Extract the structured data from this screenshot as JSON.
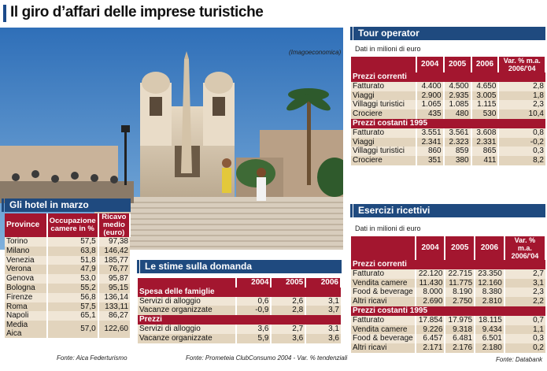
{
  "title": "Il giro d’affari delle imprese turistiche",
  "photo": {
    "credit": "(Imagoeconomica)"
  },
  "hotel": {
    "head": "Gli hotel in marzo",
    "columns": [
      "Province",
      "Occupazione camere in %",
      "Ricavo medio (euro)"
    ],
    "rows": [
      [
        "Torino",
        "57,5",
        "97,38"
      ],
      [
        "Milano",
        "63,8",
        "146,42"
      ],
      [
        "Venezia",
        "51,8",
        "185,77"
      ],
      [
        "Verona",
        "47,9",
        "76,77"
      ],
      [
        "Genova",
        "53,0",
        "95,87"
      ],
      [
        "Bologna",
        "55,2",
        "95,15"
      ],
      [
        "Firenze",
        "56,8",
        "136,14"
      ],
      [
        "Roma",
        "57,5",
        "133,11"
      ],
      [
        "Napoli",
        "65,1",
        "86,27"
      ],
      [
        "Media Aica",
        "57,0",
        "122,60"
      ]
    ],
    "source": "Fonte: Aica Federturismo"
  },
  "stime": {
    "head": "Le stime sulla domanda",
    "years": [
      "2004",
      "2005",
      "2006"
    ],
    "sections": [
      {
        "name": "Spesa delle famiglie",
        "rows": [
          [
            "Servizi di alloggio",
            "0,6",
            "2,6",
            "3,1"
          ],
          [
            "Vacanze organizzate",
            "-0,9",
            "2,8",
            "3,7"
          ]
        ]
      },
      {
        "name": "Prezzi",
        "rows": [
          [
            "Servizi di alloggio",
            "3,6",
            "2,7",
            "3,1"
          ],
          [
            "Vacanze organizzate",
            "5,9",
            "3,6",
            "3,6"
          ]
        ]
      }
    ],
    "source": "Fonte: Prometeia ClubConsumo 2004 - Var. % tendenziali"
  },
  "tour": {
    "head": "Tour operator",
    "note": "Dati in milioni di euro",
    "columns": [
      "2004",
      "2005",
      "2006",
      "Var. % m.a. 2006/'04"
    ],
    "sections": [
      {
        "name": "Prezzi correnti",
        "rows": [
          [
            "Fatturato",
            "4.400",
            "4.500",
            "4.650",
            "2,8"
          ],
          [
            "Viaggi",
            "2.900",
            "2.935",
            "3.005",
            "1,8"
          ],
          [
            "Villaggi turistici",
            "1.065",
            "1.085",
            "1.115",
            "2,3"
          ],
          [
            "Crociere",
            "435",
            "480",
            "530",
            "10,4"
          ]
        ]
      },
      {
        "name": "Prezzi costanti 1995",
        "rows": [
          [
            "Fatturato",
            "3.551",
            "3.561",
            "3.608",
            "0,8"
          ],
          [
            "Viaggi",
            "2.341",
            "2.323",
            "2.331",
            "-0,2"
          ],
          [
            "Villaggi turistici",
            "860",
            "859",
            "865",
            "0,3"
          ],
          [
            "Crociere",
            "351",
            "380",
            "411",
            "8,2"
          ]
        ]
      }
    ]
  },
  "esercizi": {
    "head": "Esercizi ricettivi",
    "note": "Dati in milioni di euro",
    "columns": [
      "2004",
      "2005",
      "2006",
      "Var. % m.a. 2006/'04"
    ],
    "sections": [
      {
        "name": "Prezzi correnti",
        "rows": [
          [
            "Fatturato",
            "22.120",
            "22.715",
            "23.350",
            "2,7"
          ],
          [
            "Vendita camere",
            "11.430",
            "11.775",
            "12.160",
            "3,1"
          ],
          [
            "Food & beverage",
            "8.000",
            "8.190",
            "8.380",
            "2,3"
          ],
          [
            "Altri ricavi",
            "2.690",
            "2.750",
            "2.810",
            "2,2"
          ]
        ]
      },
      {
        "name": "Prezzi costanti 1995",
        "rows": [
          [
            "Fatturato",
            "17.854",
            "17.975",
            "18.115",
            "0,7"
          ],
          [
            "Vendita camere",
            "9.226",
            "9.318",
            "9.434",
            "1,1"
          ],
          [
            "Food & beverage",
            "6.457",
            "6.481",
            "6.501",
            "0,3"
          ],
          [
            "Altri ricavi",
            "2.171",
            "2.176",
            "2.180",
            "0,2"
          ]
        ]
      }
    ],
    "source": "Fonte: Databank"
  },
  "colors": {
    "navy": "#1f4a7f",
    "crimson": "#a3162f",
    "beige": "#f0e6d6"
  }
}
